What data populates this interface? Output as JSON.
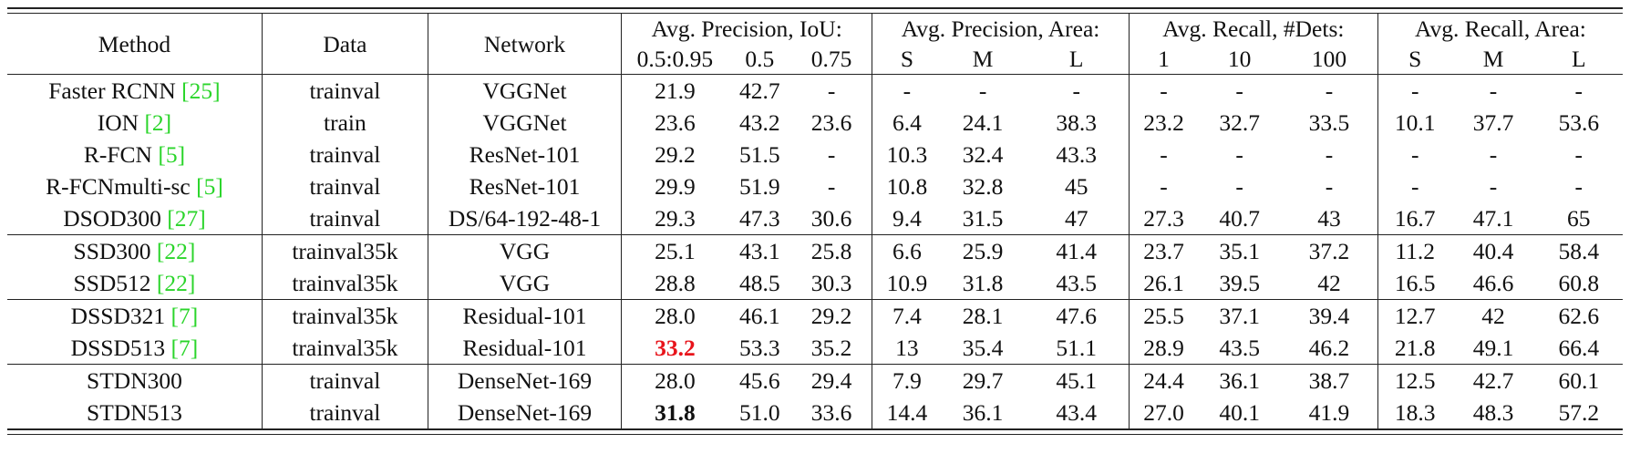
{
  "header": {
    "method": "Method",
    "data": "Data",
    "network": "Network",
    "groups": [
      {
        "title": "Avg. Precision, IoU:",
        "subs": [
          "0.5:0.95",
          "0.5",
          "0.75"
        ]
      },
      {
        "title": "Avg. Precision, Area:",
        "subs": [
          "S",
          "M",
          "L"
        ]
      },
      {
        "title": "Avg. Recall, #Dets:",
        "subs": [
          "1",
          "10",
          "100"
        ]
      },
      {
        "title": "Avg. Recall, Area:",
        "subs": [
          "S",
          "M",
          "L"
        ]
      }
    ]
  },
  "colors": {
    "citation": "#2bd52b",
    "highlight": "#e8141b"
  },
  "rows": [
    {
      "method": "Faster RCNN ",
      "cite": "[25]",
      "data": "trainval",
      "network": "VGGNet",
      "values": [
        "21.9",
        "42.7",
        "-",
        "-",
        "-",
        "-",
        "-",
        "-",
        "-",
        "-",
        "-",
        "-"
      ],
      "group_start": false
    },
    {
      "method": "ION ",
      "cite": "[2]",
      "data": "train",
      "network": "VGGNet",
      "values": [
        "23.6",
        "43.2",
        "23.6",
        "6.4",
        "24.1",
        "38.3",
        "23.2",
        "32.7",
        "33.5",
        "10.1",
        "37.7",
        "53.6"
      ],
      "group_start": false
    },
    {
      "method": "R-FCN ",
      "cite": "[5]",
      "data": "trainval",
      "network": "ResNet-101",
      "values": [
        "29.2",
        "51.5",
        "-",
        "10.3",
        "32.4",
        "43.3",
        "-",
        "-",
        "-",
        "-",
        "-",
        "-"
      ],
      "group_start": false
    },
    {
      "method": "R-FCNmulti-sc ",
      "cite": "[5]",
      "data": "trainval",
      "network": "ResNet-101",
      "values": [
        "29.9",
        "51.9",
        "-",
        "10.8",
        "32.8",
        "45",
        "-",
        "-",
        "-",
        "-",
        "-",
        "-"
      ],
      "group_start": false
    },
    {
      "method": "DSOD300 ",
      "cite": "[27]",
      "data": "trainval",
      "network": "DS/64-192-48-1",
      "values": [
        "29.3",
        "47.3",
        "30.6",
        "9.4",
        "31.5",
        "47",
        "27.3",
        "40.7",
        "43",
        "16.7",
        "47.1",
        "65"
      ],
      "group_start": false
    },
    {
      "method": "SSD300 ",
      "cite": "[22]",
      "data": "trainval35k",
      "network": "VGG",
      "values": [
        "25.1",
        "43.1",
        "25.8",
        "6.6",
        "25.9",
        "41.4",
        "23.7",
        "35.1",
        "37.2",
        "11.2",
        "40.4",
        "58.4"
      ],
      "group_start": true
    },
    {
      "method": "SSD512 ",
      "cite": "[22]",
      "data": "trainval35k",
      "network": "VGG",
      "values": [
        "28.8",
        "48.5",
        "30.3",
        "10.9",
        "31.8",
        "43.5",
        "26.1",
        "39.5",
        "42",
        "16.5",
        "46.6",
        "60.8"
      ],
      "group_start": false
    },
    {
      "method": "DSSD321 ",
      "cite": "[7]",
      "data": "trainval35k",
      "network": "Residual-101",
      "values": [
        "28.0",
        "46.1",
        "29.2",
        "7.4",
        "28.1",
        "47.6",
        "25.5",
        "37.1",
        "39.4",
        "12.7",
        "42",
        "62.6"
      ],
      "group_start": true
    },
    {
      "method": "DSSD513 ",
      "cite": "[7]",
      "data": "trainval35k",
      "network": "Residual-101",
      "values": [
        "33.2",
        "53.3",
        "35.2",
        "13",
        "35.4",
        "51.1",
        "28.9",
        "43.5",
        "46.2",
        "21.8",
        "49.1",
        "66.4"
      ],
      "group_start": false,
      "red_first": true
    },
    {
      "method": "STDN300",
      "cite": "",
      "data": "trainval",
      "network": "DenseNet-169",
      "values": [
        "28.0",
        "45.6",
        "29.4",
        "7.9",
        "29.7",
        "45.1",
        "24.4",
        "36.1",
        "38.7",
        "12.5",
        "42.7",
        "60.1"
      ],
      "group_start": true
    },
    {
      "method": "STDN513",
      "cite": "",
      "data": "trainval",
      "network": "DenseNet-169",
      "values": [
        "31.8",
        "51.0",
        "33.6",
        "14.4",
        "36.1",
        "43.4",
        "27.0",
        "40.1",
        "41.9",
        "18.3",
        "48.3",
        "57.2"
      ],
      "group_start": false,
      "bold_first": true
    }
  ]
}
